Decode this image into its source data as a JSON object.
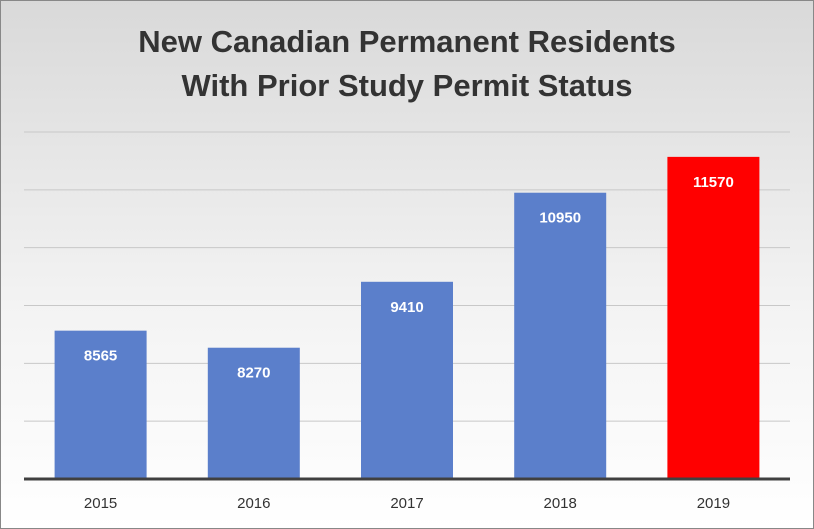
{
  "chart_data": {
    "type": "bar",
    "title": [
      "New Canadian Permanent Residents",
      "With Prior Study Permit Status"
    ],
    "categories": [
      "2015",
      "2016",
      "2017",
      "2018",
      "2019"
    ],
    "values": [
      8565,
      8270,
      9410,
      10950,
      11570
    ],
    "colors": [
      "#5b7fcb",
      "#5b7fcb",
      "#5b7fcb",
      "#5b7fcb",
      "#ff0000"
    ],
    "ylim": [
      6000,
      12000
    ],
    "grid_lines": [
      7000,
      8000,
      9000,
      10000,
      11000,
      12000
    ],
    "grid": true
  }
}
